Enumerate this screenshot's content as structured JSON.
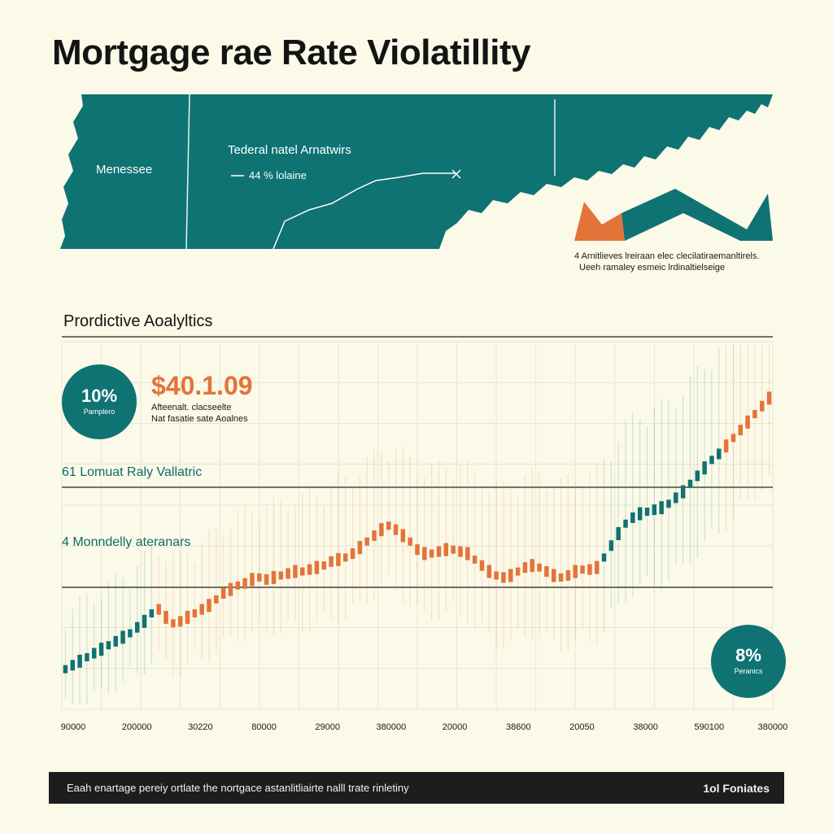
{
  "title": "Mortgage rae Rate Violatillity",
  "colors": {
    "teal": "#0f7273",
    "orange": "#e4733a",
    "background": "#fbf9e8",
    "footer": "#1b1d1f"
  },
  "map": {
    "state_label": "Menessee",
    "trend_title": "Tederal natel Arnatwirs",
    "trend_value": "44 % lolaine",
    "legend_note": [
      "4 Arnitlieves lreiraan elec clecilatiraemanltirels.",
      "Ueeh ramaley esmeic lrdinaltielseige"
    ]
  },
  "analytics": {
    "section_title": "Prordictive Aoalyltics",
    "badge_top": {
      "value": "10%",
      "label": "Pamplero"
    },
    "price": "$40.1.09",
    "price_sub": [
      "Afteenalt. clacseelte",
      "Nat fasatie sate Aoalnes"
    ],
    "band_upper": "61 Lomuat Raly Vallatric",
    "band_lower": "4 Monndelly ateranars",
    "badge_bottom": {
      "value": "8%",
      "label": "Peranics"
    }
  },
  "footer": {
    "text": "Eaah enartage pereiy ortlate the nortgace astanlitliairte nalll trate rinletiny",
    "brand": "1ol Foniates"
  },
  "chart_data": {
    "type": "bar",
    "title": "Prordictive Aoalyltics",
    "x_tick_labels": [
      "90000",
      "200000",
      "30220",
      "80000",
      "29000",
      "380000",
      "20000",
      "38600",
      "20050",
      "38000",
      "590100",
      "380000"
    ],
    "series": [
      {
        "color": "#0f7273",
        "values": [
          4.6,
          4.7,
          4.8,
          4.9,
          5.0,
          5.1,
          5.2,
          5.3,
          5.4,
          5.5,
          5.65,
          5.8,
          6.0
        ]
      },
      {
        "color": "#e4733a",
        "values": [
          6.1,
          5.9,
          5.75,
          5.8,
          5.9,
          6.0,
          6.1,
          6.2,
          6.35,
          6.5,
          6.6,
          6.7,
          6.75,
          6.85,
          6.9,
          6.85,
          6.9,
          6.95,
          7.0,
          7.05,
          7.05,
          7.1,
          7.15,
          7.2,
          7.3,
          7.35,
          7.4,
          7.5,
          7.65,
          7.8,
          7.95,
          8.1,
          8.2,
          8.1,
          7.95,
          7.8,
          7.6,
          7.5,
          7.5,
          7.55,
          7.6,
          7.6,
          7.55,
          7.5,
          7.35,
          7.2,
          7.05,
          6.95,
          6.9,
          6.95,
          7.05,
          7.15,
          7.2,
          7.15,
          7.05,
          6.95,
          6.9,
          6.95,
          7.05,
          7.1,
          7.1,
          7.15
        ]
      },
      {
        "color": "#0f7273",
        "values": [
          7.4,
          7.7,
          8.0,
          8.25,
          8.4,
          8.5,
          8.55,
          8.6,
          8.65,
          8.75,
          8.9,
          9.05,
          9.25,
          9.45,
          9.65,
          9.85,
          10.0
        ]
      },
      {
        "color": "#e4733a",
        "values": [
          10.2,
          10.4,
          10.6,
          10.8,
          11.0,
          11.2,
          11.4
        ]
      }
    ]
  }
}
